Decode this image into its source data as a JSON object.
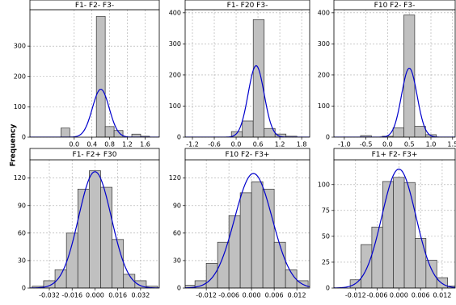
{
  "y_label": "Frequency",
  "chart_data": [
    {
      "type": "histogram",
      "title": "F1- F2- F3-",
      "color": "#c0c0c0",
      "edge_color": "#333333",
      "bins": [
        -0.3,
        -0.1,
        0.1,
        0.3,
        0.5,
        0.7,
        0.9,
        1.1,
        1.3,
        1.5,
        1.7
      ],
      "counts": [
        30,
        0,
        0,
        0,
        398,
        35,
        22,
        0,
        10,
        3
      ],
      "fit": {
        "mean": 0.6,
        "sd": 0.19,
        "peak": 158,
        "color": "#0000cc"
      },
      "xlim": [
        -1.0,
        1.92
      ],
      "ylim": [
        0,
        420
      ],
      "xticks": [
        {
          "value": 0,
          "label": "0.0"
        },
        0.4,
        0.8,
        1.2,
        1.6
      ],
      "yticks": [
        0,
        100,
        200,
        300
      ],
      "grid": true
    },
    {
      "type": "histogram",
      "title": "F1- F20 F3-",
      "color": "#c0c0c0",
      "edge_color": "#333333",
      "bins": [
        -0.13,
        0.17,
        0.47,
        0.77,
        1.07,
        1.37,
        1.67
      ],
      "counts": [
        18,
        52,
        378,
        28,
        10,
        3
      ],
      "fit": {
        "mean": 0.55,
        "sd": 0.22,
        "peak": 230,
        "color": "#0000cc"
      },
      "xlim": [
        -1.4,
        2.02
      ],
      "ylim": [
        0,
        410
      ],
      "xticks": [
        -1.2,
        -0.6,
        {
          "value": 0,
          "label": "0.0"
        },
        0.6,
        1.2,
        1.8
      ],
      "yticks": [
        0,
        100,
        200,
        300,
        400
      ],
      "grid": true
    },
    {
      "type": "histogram",
      "title": "F10 F2- F3-",
      "color": "#c0c0c0",
      "edge_color": "#333333",
      "bins": [
        -0.625,
        -0.375,
        -0.125,
        0.125,
        0.375,
        0.625,
        0.875,
        1.125
      ],
      "counts": [
        5,
        0,
        3,
        30,
        393,
        35,
        8
      ],
      "fit": {
        "mean": 0.5,
        "sd": 0.18,
        "peak": 222,
        "color": "#0000cc"
      },
      "xlim": [
        -1.24,
        1.56
      ],
      "ylim": [
        0,
        410
      ],
      "xticks": [
        {
          "value": -1,
          "label": "-1.0"
        },
        -0.5,
        {
          "value": 0,
          "label": "0.0"
        },
        0.5,
        {
          "value": 1,
          "label": "1.0"
        },
        1.5
      ],
      "yticks": [
        0,
        100,
        200,
        300,
        400
      ],
      "grid": true
    },
    {
      "type": "histogram",
      "title": "F1- F2+ F30",
      "color": "#c0c0c0",
      "edge_color": "#333333",
      "bins": [
        -0.044,
        -0.036,
        -0.028,
        -0.02,
        -0.012,
        -0.004,
        0.004,
        0.012,
        0.02,
        0.028,
        0.036,
        0.044
      ],
      "counts": [
        2,
        8,
        20,
        60,
        108,
        128,
        110,
        53,
        15,
        8,
        2
      ],
      "fit": {
        "mean": 0.0,
        "sd": 0.0115,
        "peak": 127,
        "color": "#0000cc"
      },
      "xlim": [
        -0.0456,
        0.0451
      ],
      "ylim": [
        0,
        140
      ],
      "xticks": [
        -0.032,
        -0.016,
        {
          "value": 0,
          "label": "0.000"
        },
        0.016,
        0.032
      ],
      "yticks": [
        0,
        30,
        60,
        90,
        120
      ],
      "grid": true
    },
    {
      "type": "histogram",
      "title": "F10 F2- F3+",
      "color": "#c0c0c0",
      "edge_color": "#333333",
      "bins": [
        -0.018,
        -0.015,
        -0.012,
        -0.009,
        -0.006,
        -0.003,
        0.0,
        0.003,
        0.006,
        0.009,
        0.012,
        0.015
      ],
      "counts": [
        3,
        8,
        27,
        50,
        79,
        104,
        116,
        108,
        50,
        20,
        8
      ],
      "fit": {
        "mean": 0.0005,
        "sd": 0.005,
        "peak": 125,
        "color": "#0000cc"
      },
      "xlim": [
        -0.0176,
        0.0154
      ],
      "ylim": [
        0,
        140
      ],
      "xticks": [
        -0.012,
        -0.006,
        {
          "value": 0,
          "label": "0.000"
        },
        0.006,
        0.012
      ],
      "yticks": [
        0,
        30,
        60,
        90,
        120
      ],
      "grid": true
    },
    {
      "type": "histogram",
      "title": "F1+ F2- F3+",
      "color": "#c0c0c0",
      "edge_color": "#333333",
      "bins": [
        -0.0135,
        -0.0105,
        -0.0075,
        -0.0045,
        -0.0015,
        0.0015,
        0.0045,
        0.0075,
        0.0105,
        0.0135,
        0.0165
      ],
      "counts": [
        8,
        42,
        59,
        103,
        107,
        102,
        48,
        27,
        10,
        2
      ],
      "fit": {
        "mean": 0.0,
        "sd": 0.0047,
        "peak": 115,
        "color": "#0000cc"
      },
      "xlim": [
        -0.018,
        0.0156
      ],
      "ylim": [
        0,
        124
      ],
      "xticks": [
        -0.012,
        -0.006,
        {
          "value": 0,
          "label": "0.000"
        },
        0.006,
        0.012
      ],
      "yticks": [
        0,
        25,
        50,
        75,
        100
      ],
      "grid": true
    }
  ]
}
